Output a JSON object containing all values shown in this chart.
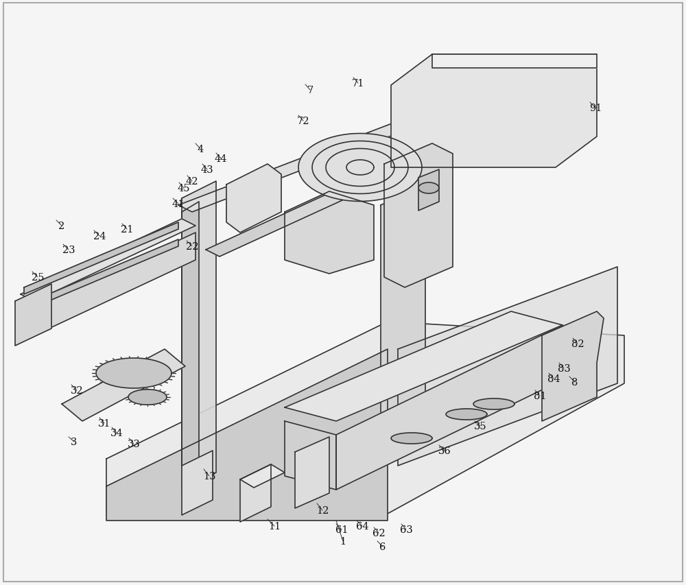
{
  "background_color": "#f0f0f0",
  "line_color": "#333333",
  "line_width": 1.2,
  "figsize": [
    10.0,
    8.54
  ],
  "dpi": 100,
  "labels_data": [
    [
      "1",
      500,
      790
    ],
    [
      "11",
      400,
      768
    ],
    [
      "12",
      470,
      745
    ],
    [
      "13",
      305,
      695
    ],
    [
      "2",
      90,
      330
    ],
    [
      "21",
      185,
      335
    ],
    [
      "22",
      280,
      360
    ],
    [
      "23",
      100,
      365
    ],
    [
      "24",
      145,
      345
    ],
    [
      "25",
      55,
      405
    ],
    [
      "3",
      108,
      645
    ],
    [
      "31",
      152,
      618
    ],
    [
      "32",
      112,
      570
    ],
    [
      "33",
      195,
      648
    ],
    [
      "34",
      170,
      632
    ],
    [
      "35",
      700,
      622
    ],
    [
      "36",
      648,
      658
    ],
    [
      "4",
      292,
      218
    ],
    [
      "41",
      260,
      298
    ],
    [
      "42",
      280,
      265
    ],
    [
      "43",
      302,
      248
    ],
    [
      "44",
      322,
      232
    ],
    [
      "45",
      268,
      275
    ],
    [
      "6",
      558,
      798
    ],
    [
      "61",
      498,
      773
    ],
    [
      "62",
      552,
      778
    ],
    [
      "63",
      592,
      773
    ],
    [
      "64",
      528,
      768
    ],
    [
      "7",
      452,
      132
    ],
    [
      "71",
      522,
      122
    ],
    [
      "72",
      442,
      177
    ],
    [
      "8",
      838,
      558
    ],
    [
      "81",
      787,
      578
    ],
    [
      "82",
      842,
      502
    ],
    [
      "83",
      822,
      538
    ],
    [
      "84",
      807,
      553
    ],
    [
      "91",
      868,
      158
    ]
  ],
  "anno_targets": {
    "1": [
      490,
      760,
      490,
      740
    ],
    "11": [
      390,
      758,
      370,
      730
    ],
    "12": [
      462,
      735,
      450,
      715
    ],
    "13": [
      297,
      685,
      290,
      668
    ],
    "2": [
      82,
      322,
      130,
      370
    ],
    "21": [
      178,
      327,
      200,
      345
    ],
    "22": [
      272,
      352,
      295,
      365
    ],
    "23": [
      92,
      357,
      50,
      440
    ],
    "24": [
      137,
      337,
      150,
      365
    ],
    "25": [
      47,
      397,
      50,
      458
    ],
    "3": [
      100,
      638,
      120,
      590
    ],
    "31": [
      145,
      610,
      165,
      580
    ],
    "32": [
      104,
      562,
      195,
      540
    ],
    "33": [
      188,
      640,
      215,
      580
    ],
    "34": [
      163,
      624,
      195,
      575
    ],
    "35": [
      692,
      615,
      730,
      595
    ],
    "36": [
      640,
      650,
      640,
      640
    ],
    "4": [
      285,
      210,
      340,
      250
    ],
    "41": [
      252,
      290,
      280,
      305
    ],
    "42": [
      273,
      257,
      295,
      275
    ],
    "43": [
      295,
      240,
      340,
      265
    ],
    "44": [
      315,
      224,
      350,
      248
    ],
    "45": [
      261,
      267,
      285,
      290
    ],
    "6": [
      550,
      790,
      570,
      765
    ],
    "61": [
      490,
      765,
      510,
      740
    ],
    "62": [
      545,
      770,
      565,
      750
    ],
    "63": [
      585,
      765,
      700,
      690
    ],
    "64": [
      520,
      760,
      540,
      748
    ],
    "7": [
      445,
      124,
      500,
      220
    ],
    "71": [
      515,
      114,
      535,
      170
    ],
    "72": [
      435,
      169,
      475,
      230
    ],
    "8": [
      830,
      550,
      800,
      530
    ],
    "81": [
      780,
      570,
      815,
      575
    ],
    "82": [
      835,
      494,
      840,
      520
    ],
    "83": [
      815,
      530,
      830,
      545
    ],
    "84": [
      800,
      545,
      815,
      558
    ],
    "91": [
      860,
      150,
      780,
      170
    ]
  }
}
